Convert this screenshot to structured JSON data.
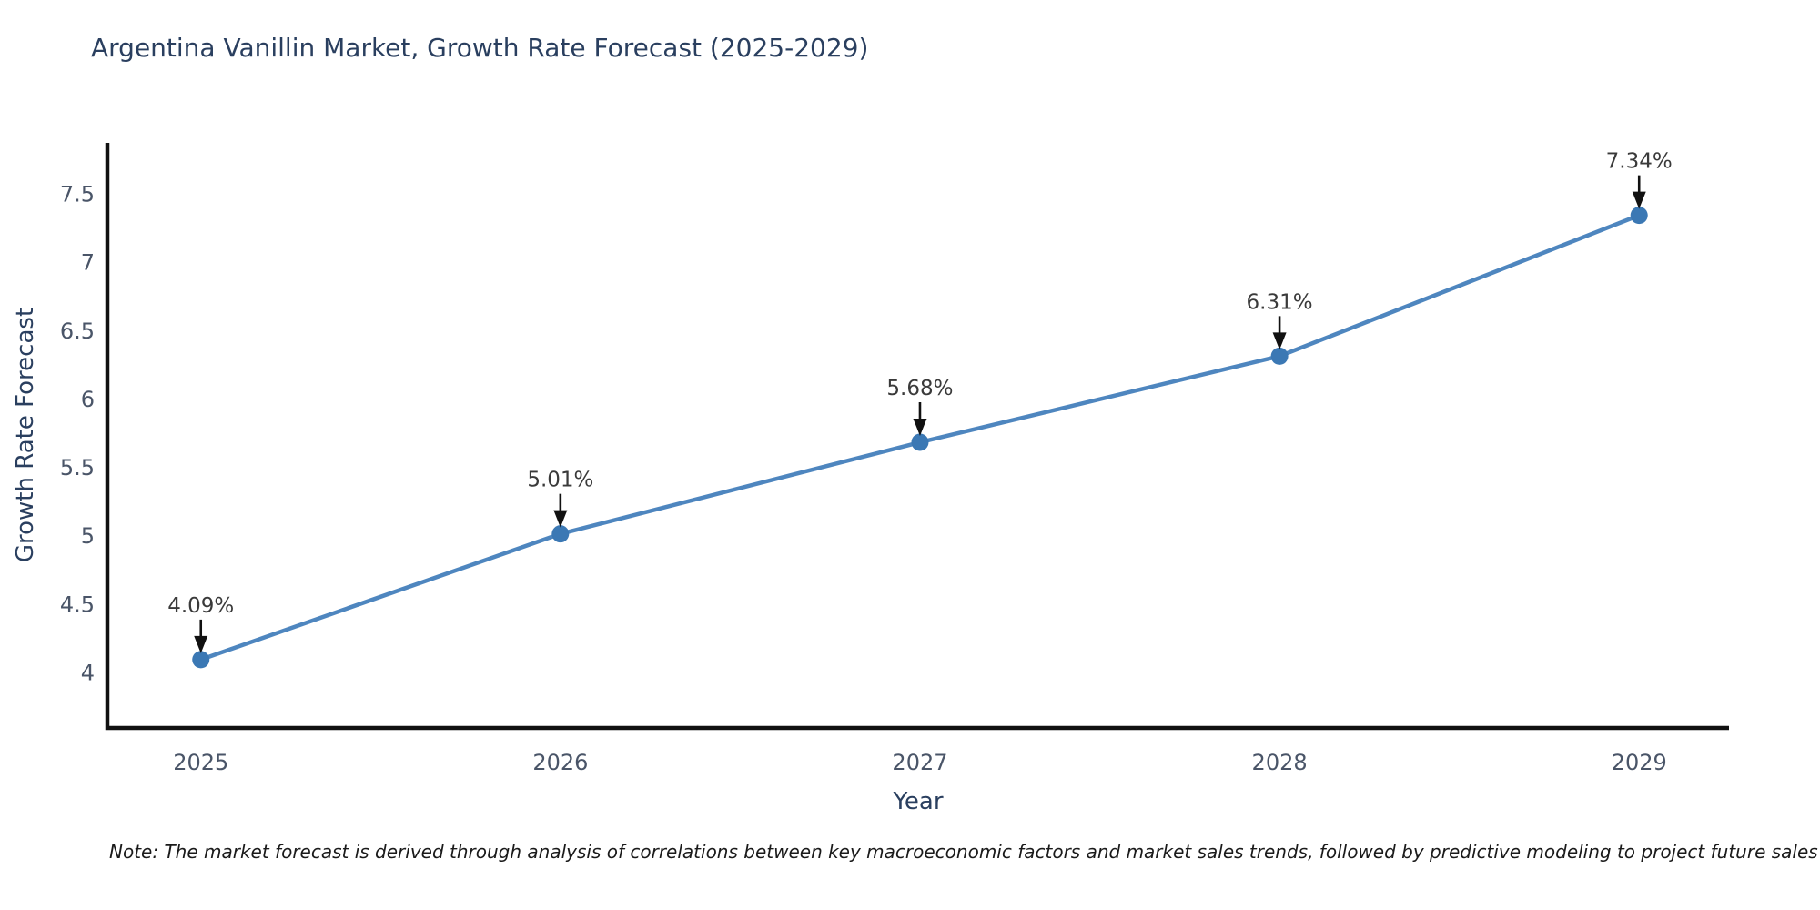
{
  "chart": {
    "title": "Argentina Vanillin Market, Growth Rate Forecast (2025-2029)",
    "note": "Note: The market forecast is derived through analysis of correlations between key macroeconomic factors and market sales trends, followed by predictive modeling to project future sales",
    "chart_data": {
      "type": "line",
      "x": [
        2025,
        2026,
        2027,
        2028,
        2029
      ],
      "series": [
        {
          "name": "Growth Rate Forecast",
          "values": [
            4.09,
            5.01,
            5.68,
            6.31,
            7.34
          ]
        }
      ],
      "point_labels": [
        "4.09%",
        "5.01%",
        "5.68%",
        "6.31%",
        "7.34%"
      ],
      "title": "Argentina Vanillin Market, Growth Rate Forecast (2025-2029)",
      "xlabel": "Year",
      "ylabel": "Growth Rate Forecast",
      "xtick_labels": [
        "2025",
        "2026",
        "2027",
        "2028",
        "2029"
      ],
      "yticks": [
        4,
        4.5,
        5,
        5.5,
        6,
        6.5,
        7,
        7.5
      ],
      "ytick_labels": [
        "4",
        "4.5",
        "5",
        "5.5",
        "6",
        "6.5",
        "7",
        "7.5"
      ],
      "xlim": [
        2024.74,
        2029.25
      ],
      "ylim": [
        3.59,
        7.87
      ],
      "grid": false,
      "legend": "none",
      "annotations": "value labels with downward arrows above each point",
      "colors": {
        "line": "#4e86bf",
        "marker": "#3b78b4",
        "axis": "#111111",
        "arrow": "#111111",
        "annotation_text": "#3a3a3a",
        "tick_text": "#4a5568",
        "title_text": "#2a3f5f",
        "background": "#ffffff"
      }
    }
  }
}
